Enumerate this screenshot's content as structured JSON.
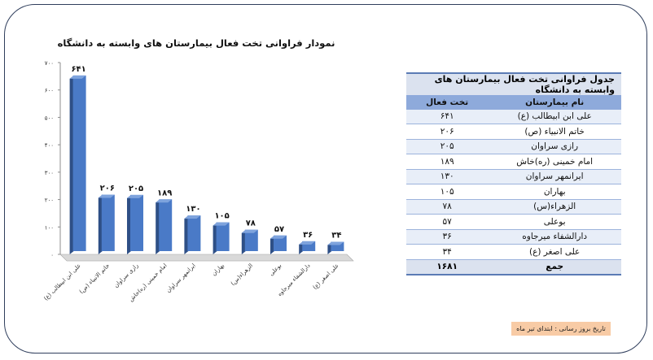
{
  "chart_data": {
    "type": "bar",
    "title": "نمودار فراوانی تخت فعال بیمارستان های وابسته به دانشگاه",
    "categories": [
      "علی ابن ابیطالب (ع)",
      "خاتم الانبیاء (ص)",
      "رازی سراوان",
      "امام خمینی (ره)خاش",
      "ایرانمهر سراوان",
      "بهاران",
      "الزهراء(س)",
      "بوعلی",
      "دارالشفاء میرجاوه",
      "علی اصغر (ع)"
    ],
    "values": [
      641,
      206,
      205,
      189,
      130,
      105,
      78,
      57,
      36,
      34
    ],
    "value_labels": [
      "۶۴۱",
      "۲۰۶",
      "۲۰۵",
      "۱۸۹",
      "۱۳۰",
      "۱۰۵",
      "۷۸",
      "۵۷",
      "۳۶",
      "۳۴"
    ],
    "ylim": [
      0,
      700
    ],
    "yticks": [
      0,
      100,
      200,
      300,
      400,
      500,
      600,
      700
    ],
    "ytick_labels": [
      "۰",
      "۱۰۰",
      "۲۰۰",
      "۳۰۰",
      "۴۰۰",
      "۵۰۰",
      "۶۰۰",
      "۷۰۰"
    ],
    "xlabel": "",
    "ylabel": "",
    "bar_color": "#4a7ac7",
    "grid": false
  },
  "table": {
    "title": "جدول فراوانی تخت فعال بیمارستان های وابسته به  دانشگاه",
    "headers": {
      "name": "نام بیمارستان",
      "beds": "تخت فعال"
    },
    "rows": [
      {
        "name": "علی ابن ابیطالب (ع)",
        "beds": "۶۴۱"
      },
      {
        "name": "خاتم الانبیاء (ص)",
        "beds": "۲۰۶"
      },
      {
        "name": "رازی سراوان",
        "beds": "۲۰۵"
      },
      {
        "name": "امام خمینی (ره)خاش",
        "beds": "۱۸۹"
      },
      {
        "name": "ایرانمهر سراوان",
        "beds": "۱۳۰"
      },
      {
        "name": "بهاران",
        "beds": "۱۰۵"
      },
      {
        "name": "الزهراء(س)",
        "beds": "۷۸"
      },
      {
        "name": "بوعلی",
        "beds": "۵۷"
      },
      {
        "name": "دارالشفاء میرجاوه",
        "beds": "۳۶"
      },
      {
        "name": "علی اصغر (ع)",
        "beds": "۳۴"
      }
    ],
    "total": {
      "name": "جمع",
      "beds": "۱۶۸۱"
    }
  },
  "note": "تاریخ بروز رسانی : ابتدای تیر ماه"
}
